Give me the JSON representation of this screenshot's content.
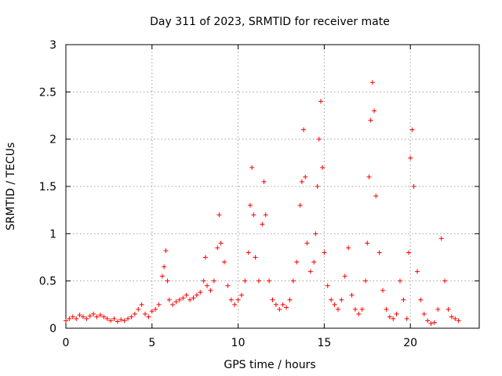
{
  "chart_data": {
    "type": "scatter",
    "title": "Day 311 of 2023, SRMTID for receiver mate",
    "xlabel": "GPS time / hours",
    "ylabel": "SRMTID / TECUs",
    "xlim": [
      0,
      24
    ],
    "ylim": [
      0,
      3
    ],
    "xticks": [
      0,
      5,
      10,
      15,
      20
    ],
    "xtick_labels": [
      "0",
      "5",
      "10",
      "15",
      "20"
    ],
    "yticks": [
      0,
      0.5,
      1,
      1.5,
      2,
      2.5,
      3
    ],
    "ytick_labels": [
      "0",
      "0.5",
      "1",
      "1.5",
      "2",
      "2.5",
      "3"
    ],
    "grid": true,
    "marker": "+",
    "series": [
      {
        "name": "SRMTID",
        "color": "#ff0000",
        "x": [
          0.0,
          0.2,
          0.4,
          0.6,
          0.8,
          1.0,
          1.2,
          1.4,
          1.6,
          1.8,
          2.0,
          2.2,
          2.4,
          2.6,
          2.8,
          3.0,
          3.2,
          3.4,
          3.6,
          3.8,
          4.0,
          4.2,
          4.4,
          4.6,
          4.8,
          5.0,
          5.2,
          5.4,
          5.6,
          5.7,
          5.8,
          5.9,
          6.0,
          6.2,
          6.4,
          6.6,
          6.8,
          7.0,
          7.2,
          7.4,
          7.6,
          7.8,
          8.0,
          8.1,
          8.2,
          8.4,
          8.6,
          8.8,
          8.9,
          9.0,
          9.2,
          9.4,
          9.6,
          9.8,
          10.0,
          10.2,
          10.4,
          10.6,
          10.7,
          10.8,
          10.9,
          11.0,
          11.2,
          11.4,
          11.5,
          11.6,
          11.8,
          12.0,
          12.2,
          12.4,
          12.6,
          12.8,
          13.0,
          13.2,
          13.4,
          13.6,
          13.7,
          13.8,
          13.9,
          14.0,
          14.2,
          14.4,
          14.5,
          14.6,
          14.7,
          14.8,
          14.9,
          15.0,
          15.2,
          15.4,
          15.6,
          15.8,
          16.0,
          16.2,
          16.4,
          16.6,
          16.8,
          17.0,
          17.2,
          17.4,
          17.5,
          17.6,
          17.7,
          17.8,
          17.9,
          18.0,
          18.2,
          18.4,
          18.6,
          18.8,
          19.0,
          19.2,
          19.4,
          19.6,
          19.8,
          19.9,
          20.0,
          20.1,
          20.2,
          20.4,
          20.6,
          20.8,
          21.0,
          21.2,
          21.4,
          21.6,
          21.8,
          22.0,
          22.2,
          22.4,
          22.6,
          22.8
        ],
        "y": [
          0.08,
          0.1,
          0.12,
          0.1,
          0.14,
          0.12,
          0.1,
          0.13,
          0.15,
          0.12,
          0.14,
          0.12,
          0.1,
          0.08,
          0.1,
          0.07,
          0.09,
          0.08,
          0.1,
          0.12,
          0.15,
          0.2,
          0.25,
          0.15,
          0.12,
          0.18,
          0.2,
          0.25,
          0.55,
          0.65,
          0.82,
          0.5,
          0.3,
          0.25,
          0.28,
          0.3,
          0.32,
          0.35,
          0.3,
          0.32,
          0.35,
          0.38,
          0.5,
          0.75,
          0.45,
          0.4,
          0.5,
          0.85,
          1.2,
          0.9,
          0.7,
          0.45,
          0.3,
          0.25,
          0.3,
          0.35,
          0.5,
          0.8,
          1.3,
          1.7,
          1.2,
          0.75,
          0.5,
          1.1,
          1.55,
          1.2,
          0.5,
          0.3,
          0.25,
          0.2,
          0.25,
          0.22,
          0.3,
          0.5,
          0.7,
          1.3,
          1.55,
          2.1,
          1.6,
          0.9,
          0.6,
          0.7,
          1.0,
          1.5,
          2.0,
          2.4,
          1.7,
          0.8,
          0.45,
          0.3,
          0.25,
          0.2,
          0.3,
          0.55,
          0.85,
          0.35,
          0.2,
          0.15,
          0.2,
          0.5,
          0.9,
          1.6,
          2.2,
          2.6,
          2.3,
          1.4,
          0.8,
          0.4,
          0.2,
          0.12,
          0.1,
          0.15,
          0.5,
          0.3,
          0.1,
          0.8,
          1.8,
          2.1,
          1.5,
          0.6,
          0.3,
          0.15,
          0.08,
          0.05,
          0.06,
          0.2,
          0.95,
          0.5,
          0.2,
          0.12,
          0.1,
          0.08
        ]
      }
    ]
  }
}
